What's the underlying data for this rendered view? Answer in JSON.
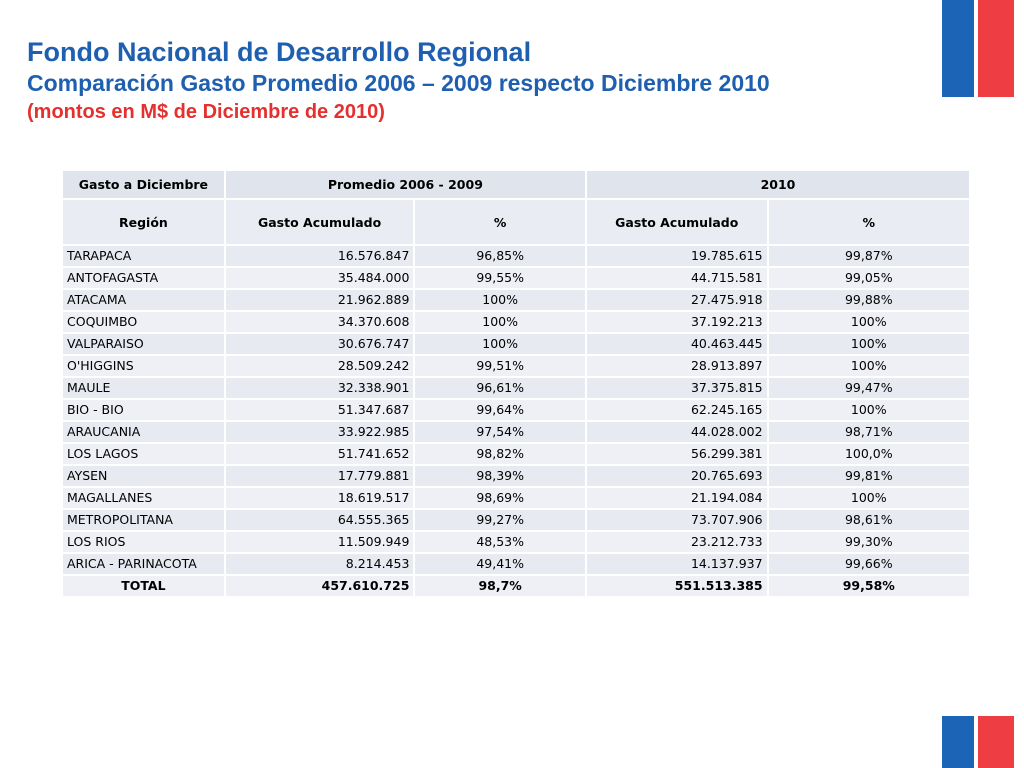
{
  "header": {
    "title": "Fondo Nacional de Desarrollo Regional",
    "subtitle": "Comparación Gasto Promedio 2006 – 2009 respecto Diciembre 2010",
    "note": "(montos en M$ de Diciembre de 2010)"
  },
  "colors": {
    "flag_blue": "#1c64b5",
    "flag_red": "#ee3e43",
    "title_blue": "#1f5fb0",
    "note_red": "#e4302e"
  },
  "table": {
    "group_headers": [
      "Gasto a Diciembre",
      "Promedio 2006 - 2009",
      "2010"
    ],
    "column_headers": [
      "Región",
      "Gasto Acumulado",
      "%",
      "Gasto Acumulado",
      "%"
    ],
    "rows": [
      [
        "TARAPACA",
        "16.576.847",
        "96,85%",
        "19.785.615",
        "99,87%"
      ],
      [
        "ANTOFAGASTA",
        "35.484.000",
        "99,55%",
        "44.715.581",
        "99,05%"
      ],
      [
        "ATACAMA",
        "21.962.889",
        "100%",
        "27.475.918",
        "99,88%"
      ],
      [
        "COQUIMBO",
        "34.370.608",
        "100%",
        "37.192.213",
        "100%"
      ],
      [
        "VALPARAISO",
        "30.676.747",
        "100%",
        "40.463.445",
        "100%"
      ],
      [
        "O'HIGGINS",
        "28.509.242",
        "99,51%",
        "28.913.897",
        "100%"
      ],
      [
        "MAULE",
        "32.338.901",
        "96,61%",
        "37.375.815",
        "99,47%"
      ],
      [
        "BIO - BIO",
        "51.347.687",
        "99,64%",
        "62.245.165",
        "100%"
      ],
      [
        "ARAUCANIA",
        "33.922.985",
        "97,54%",
        "44.028.002",
        "98,71%"
      ],
      [
        "LOS LAGOS",
        "51.741.652",
        "98,82%",
        "56.299.381",
        "100,0%"
      ],
      [
        "AYSEN",
        "17.779.881",
        "98,39%",
        "20.765.693",
        "99,81%"
      ],
      [
        "MAGALLANES",
        "18.619.517",
        "98,69%",
        "21.194.084",
        "100%"
      ],
      [
        "METROPOLITANA",
        "64.555.365",
        "99,27%",
        "73.707.906",
        "98,61%"
      ],
      [
        "LOS RIOS",
        "11.509.949",
        "48,53%",
        "23.212.733",
        "99,30%"
      ],
      [
        "ARICA - PARINACOTA",
        "8.214.453",
        "49,41%",
        "14.137.937",
        "99,66%"
      ]
    ],
    "total": [
      "TOTAL",
      "457.610.725",
      "98,7%",
      "551.513.385",
      "99,58%"
    ]
  }
}
